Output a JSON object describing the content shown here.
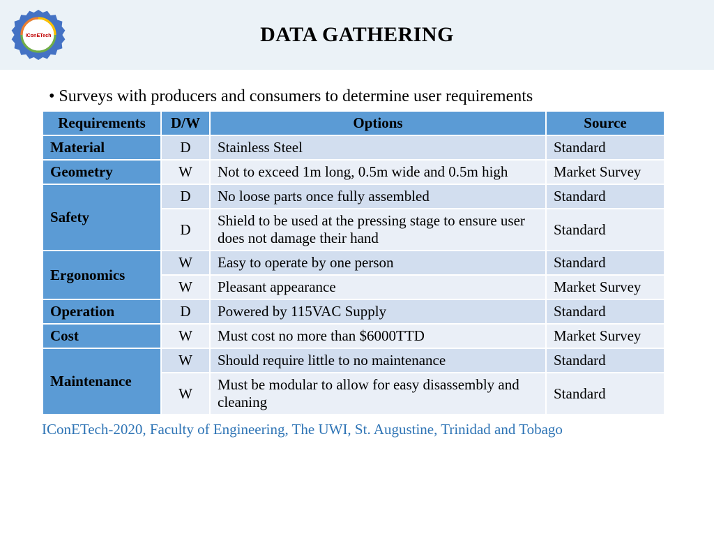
{
  "colors": {
    "header_bg": "#5b9bd5",
    "req_col_bg": "#5b9bd5",
    "row_light": "#eaeff7",
    "row_dark": "#d2deef",
    "band_bg": "#ebf2f7",
    "footer_text": "#2e74b5"
  },
  "logo_label": "IConETech-2020",
  "title": "DATA GATHERING",
  "bullet": "Surveys with producers and consumers to determine user requirements",
  "table": {
    "headers": [
      "Requirements",
      "D/W",
      "Options",
      "Source"
    ],
    "col_widths": [
      "170px",
      "70px",
      "auto",
      "170px"
    ],
    "groups": [
      {
        "req": "Material",
        "rows": [
          {
            "dw": "D",
            "opt": "Stainless Steel",
            "src": "Standard"
          }
        ]
      },
      {
        "req": "Geometry",
        "rows": [
          {
            "dw": "W",
            "opt": "Not to exceed 1m long, 0.5m wide and 0.5m high",
            "src": "Market Survey"
          }
        ]
      },
      {
        "req": "Safety",
        "rows": [
          {
            "dw": "D",
            "opt": "No loose parts once fully assembled",
            "src": "Standard"
          },
          {
            "dw": "D",
            "opt": "Shield to be used at the pressing stage to ensure user does not damage their hand",
            "src": "Standard"
          }
        ]
      },
      {
        "req": "Ergonomics",
        "rows": [
          {
            "dw": "W",
            "opt": "Easy to operate by one person",
            "src": "Standard"
          },
          {
            "dw": "W",
            "opt": "Pleasant appearance",
            "src": "Market Survey"
          }
        ]
      },
      {
        "req": "Operation",
        "rows": [
          {
            "dw": "D",
            "opt": "Powered by 115VAC Supply",
            "src": "Standard"
          }
        ]
      },
      {
        "req": "Cost",
        "rows": [
          {
            "dw": "W",
            "opt": "Must cost no more than $6000TTD",
            "src": "Market Survey"
          }
        ]
      },
      {
        "req": "Maintenance",
        "rows": [
          {
            "dw": "W",
            "opt": "Should require little to no maintenance",
            "src": "Standard"
          },
          {
            "dw": "W",
            "opt": "Must be modular to allow for easy disassembly and cleaning",
            "src": "Standard"
          }
        ]
      }
    ]
  },
  "footer": "IConETech-2020, Faculty of Engineering, The UWI, St. Augustine, Trinidad and Tobago"
}
